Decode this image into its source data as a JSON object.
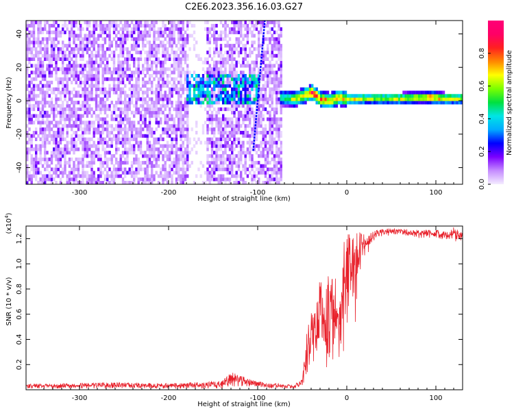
{
  "figure": {
    "title": "C2E6.2023.356.16.03.G27"
  },
  "chart_data": [
    {
      "type": "heatmap",
      "panel": "top",
      "xlabel": "Height of straight line (km)",
      "ylabel": "Frequency (Hz)",
      "xlim": [
        -360,
        130
      ],
      "ylim": [
        -50,
        48
      ],
      "x_ticks": [
        -300,
        -200,
        -100,
        0,
        100
      ],
      "y_ticks": [
        -40,
        -20,
        0,
        20,
        40
      ],
      "colorbar": {
        "label": "Normalized spectral amplitude",
        "range": [
          0,
          1
        ],
        "ticks": [
          "0.0",
          "0.2",
          "0.4",
          "0.6",
          "0.8"
        ],
        "colors": [
          "#f4ecff",
          "#c58cff",
          "#7b00ff",
          "#0000ff",
          "#00aaff",
          "#00e5e5",
          "#00e040",
          "#7aff00",
          "#ffff00",
          "#ff8800",
          "#ff2020",
          "#ff0066",
          "#ff0077"
        ]
      },
      "regions": [
        {
          "name": "noise",
          "x_range": [
            -360,
            -75
          ],
          "freq_range": [
            -50,
            48
          ],
          "amplitude_range": [
            0.0,
            0.2
          ]
        },
        {
          "name": "gap-low-signal",
          "x_range": [
            -178,
            -160
          ],
          "freq_range": [
            -50,
            48
          ],
          "amplitude_range": [
            0.0,
            0.05
          ]
        },
        {
          "name": "weak-band",
          "x_range": [
            -180,
            -100
          ],
          "freq_center": 6,
          "amplitude_range": [
            0.2,
            0.5
          ]
        },
        {
          "name": "diagonal-streak",
          "x_start": -105,
          "freq_start": -30,
          "x_end": -92,
          "freq_end": 48,
          "amplitude": 0.25
        },
        {
          "name": "carrier-line",
          "x_range": [
            -75,
            130
          ],
          "freq_center": 0.5,
          "amplitude_range": [
            0.4,
            1.0
          ]
        }
      ],
      "carrier_track": {
        "x": [
          -75,
          -60,
          -50,
          -40,
          -30,
          -20,
          -10,
          0,
          20,
          40,
          60,
          80,
          95,
          110,
          130
        ],
        "freq": [
          1,
          0,
          2,
          4,
          0,
          -1,
          1,
          0,
          0.5,
          0.5,
          0.5,
          1,
          1,
          0.5,
          0.5
        ],
        "amplitude": [
          0.55,
          0.7,
          0.85,
          0.95,
          0.9,
          0.8,
          0.85,
          0.75,
          0.7,
          0.7,
          0.75,
          0.8,
          0.95,
          0.8,
          0.7
        ]
      }
    },
    {
      "type": "line",
      "panel": "bottom",
      "xlabel": "Height of straight line (km)",
      "ylabel": "SNR (10 * v/v)",
      "y_scale_label": "(x10",
      "y_scale_exp": "4",
      "xlim": [
        -360,
        130
      ],
      "ylim": [
        0,
        13000
      ],
      "x_ticks": [
        -300,
        -200,
        -100,
        0,
        100
      ],
      "y_ticks": [
        0.2,
        0.4,
        0.6,
        0.8,
        1.0,
        1.2
      ],
      "series": [
        {
          "color": "#e8202a",
          "envelope": {
            "x": [
              -360,
              -250,
              -200,
              -140,
              -130,
              -120,
              -110,
              -100,
              -90,
              -80,
              -60,
              -50,
              -45,
              -40,
              -35,
              -30,
              -25,
              -20,
              -15,
              -10,
              -5,
              0,
              5,
              10,
              15,
              20,
              25,
              30,
              35,
              40,
              60,
              80,
              100,
              110,
              120,
              130
            ],
            "y_low": [
              80,
              120,
              80,
              100,
              150,
              200,
              120,
              100,
              80,
              100,
              100,
              200,
              1000,
              1500,
              700,
              2500,
              1800,
              800,
              1500,
              1200,
              2500,
              4500,
              5200,
              5400,
              8800,
              10500,
              11000,
              11800,
              12000,
              12200,
              12300,
              12000,
              12100,
              11800,
              11800,
              11700
            ],
            "y_high": [
              450,
              600,
              500,
              700,
              1400,
              1200,
              900,
              700,
              500,
              500,
              400,
              800,
              4500,
              6300,
              6300,
              9000,
              7500,
              9500,
              8800,
              9200,
              11500,
              12500,
              13000,
              12800,
              12500,
              12300,
              12500,
              12600,
              12700,
              12800,
              12800,
              12700,
              12700,
              12600,
              12900,
              12500
            ]
          }
        }
      ]
    }
  ]
}
